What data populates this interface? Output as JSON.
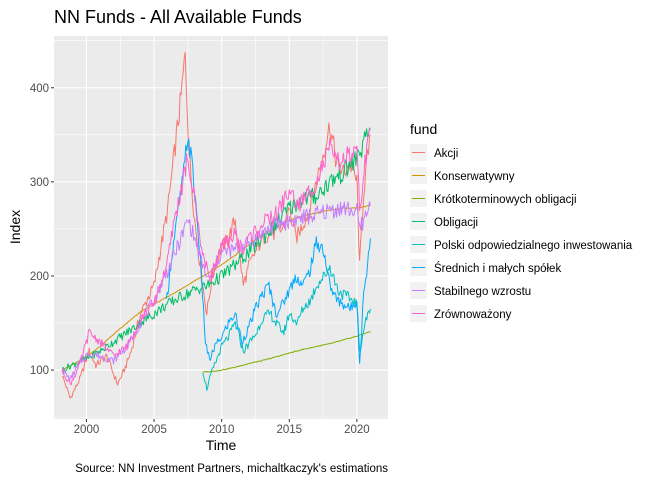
{
  "chart_data": {
    "type": "line",
    "title": "NN Funds - All Available Funds",
    "xlabel": "Time",
    "ylabel": "Index",
    "caption": "Source: NN Investment Partners, michaltkaczyk's estimations",
    "legend_title": "fund",
    "legend_position": "right",
    "grid": true,
    "xlim": [
      1997.6,
      2022.3
    ],
    "ylim": [
      48,
      455
    ],
    "x_ticks": [
      2000,
      2005,
      2010,
      2015,
      2020
    ],
    "y_ticks": [
      100,
      200,
      300,
      400
    ],
    "series": [
      {
        "name": "Akcji",
        "color": "#F8766D",
        "x": [
          1998.2,
          1998.8,
          1999.5,
          2000.2,
          2000.7,
          2001.5,
          2002.3,
          2002.8,
          2003.3,
          2004.0,
          2005.0,
          2005.5,
          2006.0,
          2006.5,
          2007.0,
          2007.3,
          2007.6,
          2008.0,
          2008.5,
          2008.9,
          2009.2,
          2009.5,
          2010.0,
          2010.5,
          2011.0,
          2011.6,
          2012.0,
          2012.5,
          2013.0,
          2013.5,
          2014.0,
          2014.5,
          2015.0,
          2015.5,
          2016.0,
          2016.5,
          2017.0,
          2017.5,
          2018.0,
          2018.5,
          2019.0,
          2019.5,
          2020.0,
          2020.2,
          2020.5,
          2021.0
        ],
        "y": [
          95,
          70,
          90,
          120,
          105,
          115,
          85,
          100,
          120,
          160,
          190,
          230,
          270,
          330,
          390,
          435,
          330,
          260,
          200,
          160,
          190,
          210,
          230,
          240,
          260,
          190,
          210,
          225,
          240,
          245,
          245,
          250,
          270,
          240,
          255,
          270,
          300,
          330,
          360,
          320,
          310,
          320,
          300,
          210,
          290,
          350
        ]
      },
      {
        "name": "Konserwatywny",
        "color": "#CD9600",
        "x": [
          1998.2,
          1999.0,
          2000.0,
          2001.0,
          2002.0,
          2003.0,
          2004.0,
          2005.0,
          2006.0,
          2007.0,
          2008.0,
          2009.0,
          2010.0,
          2011.0,
          2012.0,
          2013.0,
          2014.0,
          2015.0,
          2016.0,
          2017.0,
          2018.0,
          2019.0,
          2020.0,
          2021.0
        ],
        "y": [
          100,
          106,
          114,
          125,
          138,
          150,
          162,
          170,
          178,
          186,
          195,
          203,
          212,
          222,
          233,
          243,
          252,
          259,
          264,
          267,
          270,
          272,
          272,
          275
        ]
      },
      {
        "name": "Krótkoterminowych obligacji",
        "color": "#7CAE00",
        "x": [
          2008.6,
          2009.0,
          2010.0,
          2011.0,
          2012.0,
          2013.0,
          2014.0,
          2015.0,
          2016.0,
          2017.0,
          2018.0,
          2019.0,
          2020.0,
          2021.0
        ],
        "y": [
          98,
          98,
          100,
          103,
          107,
          110,
          114,
          118,
          122,
          125,
          128,
          132,
          136,
          141
        ]
      },
      {
        "name": "Obligacji",
        "color": "#00BE67",
        "x": [
          1998.2,
          1999.0,
          2000.0,
          2001.0,
          2002.0,
          2003.0,
          2004.0,
          2005.0,
          2006.0,
          2007.0,
          2008.0,
          2009.0,
          2010.0,
          2011.0,
          2012.0,
          2013.0,
          2014.0,
          2015.0,
          2016.0,
          2017.0,
          2018.0,
          2019.0,
          2020.0,
          2021.0
        ],
        "y": [
          100,
          106,
          112,
          120,
          130,
          140,
          150,
          160,
          170,
          178,
          185,
          190,
          200,
          212,
          225,
          240,
          255,
          272,
          282,
          285,
          300,
          310,
          325,
          355
        ]
      },
      {
        "name": "Polski odpowiedzialnego inwestowania",
        "color": "#00BFC4",
        "x": [
          2008.6,
          2008.9,
          2009.2,
          2009.6,
          2010.0,
          2010.5,
          2011.0,
          2011.6,
          2012.0,
          2012.6,
          2013.0,
          2013.6,
          2014.0,
          2014.6,
          2015.0,
          2015.6,
          2016.0,
          2016.6,
          2017.0,
          2017.6,
          2018.0,
          2018.6,
          2019.0,
          2019.6,
          2020.0,
          2020.2,
          2020.6,
          2021.0
        ],
        "y": [
          100,
          80,
          95,
          110,
          125,
          135,
          150,
          120,
          128,
          140,
          155,
          160,
          150,
          140,
          160,
          150,
          165,
          175,
          190,
          200,
          210,
          185,
          180,
          175,
          170,
          120,
          150,
          165
        ]
      },
      {
        "name": "Średnich i małych spółek",
        "color": "#00A9FF",
        "x": [
          2005.9,
          2006.3,
          2006.8,
          2007.2,
          2007.5,
          2007.8,
          2008.2,
          2008.5,
          2008.8,
          2009.1,
          2009.5,
          2010.0,
          2010.5,
          2011.0,
          2011.5,
          2012.0,
          2012.5,
          2013.0,
          2013.5,
          2014.0,
          2014.5,
          2015.0,
          2015.5,
          2016.0,
          2016.5,
          2017.0,
          2017.5,
          2018.0,
          2018.5,
          2019.0,
          2019.5,
          2020.0,
          2020.2,
          2020.5,
          2021.0
        ],
        "y": [
          170,
          220,
          270,
          310,
          350,
          320,
          260,
          200,
          130,
          110,
          125,
          135,
          150,
          160,
          130,
          145,
          165,
          180,
          190,
          160,
          170,
          185,
          200,
          190,
          205,
          235,
          230,
          190,
          175,
          170,
          165,
          175,
          105,
          180,
          240
        ]
      },
      {
        "name": "Stabilnego wzrostu",
        "color": "#C77CFF",
        "x": [
          1998.2,
          1998.8,
          1999.5,
          2000.2,
          2001.0,
          2002.0,
          2003.0,
          2004.0,
          2005.0,
          2006.0,
          2007.0,
          2007.5,
          2008.0,
          2008.5,
          2009.0,
          2009.5,
          2010.0,
          2011.0,
          2012.0,
          2013.0,
          2014.0,
          2015.0,
          2016.0,
          2017.0,
          2018.0,
          2019.0,
          2020.0,
          2020.2,
          2021.0
        ],
        "y": [
          100,
          90,
          108,
          118,
          115,
          110,
          125,
          150,
          175,
          205,
          240,
          260,
          240,
          215,
          195,
          210,
          225,
          228,
          235,
          245,
          255,
          258,
          262,
          265,
          270,
          272,
          268,
          250,
          275
        ]
      },
      {
        "name": "Zrównoważony",
        "color": "#FF61CC",
        "x": [
          1998.2,
          1998.8,
          1999.5,
          2000.2,
          2001.0,
          2002.0,
          2003.0,
          2004.0,
          2005.0,
          2006.0,
          2006.5,
          2007.0,
          2007.4,
          2007.8,
          2008.3,
          2008.8,
          2009.2,
          2009.6,
          2010.0,
          2011.0,
          2011.6,
          2012.0,
          2013.0,
          2014.0,
          2015.0,
          2015.6,
          2016.0,
          2017.0,
          2018.0,
          2018.6,
          2019.0,
          2020.0,
          2020.2,
          2020.6,
          2021.0
        ],
        "y": [
          100,
          85,
          105,
          140,
          130,
          115,
          125,
          155,
          170,
          215,
          260,
          290,
          320,
          300,
          250,
          210,
          200,
          215,
          230,
          245,
          225,
          240,
          255,
          265,
          290,
          275,
          280,
          300,
          335,
          320,
          325,
          330,
          270,
          320,
          355
        ]
      }
    ]
  }
}
